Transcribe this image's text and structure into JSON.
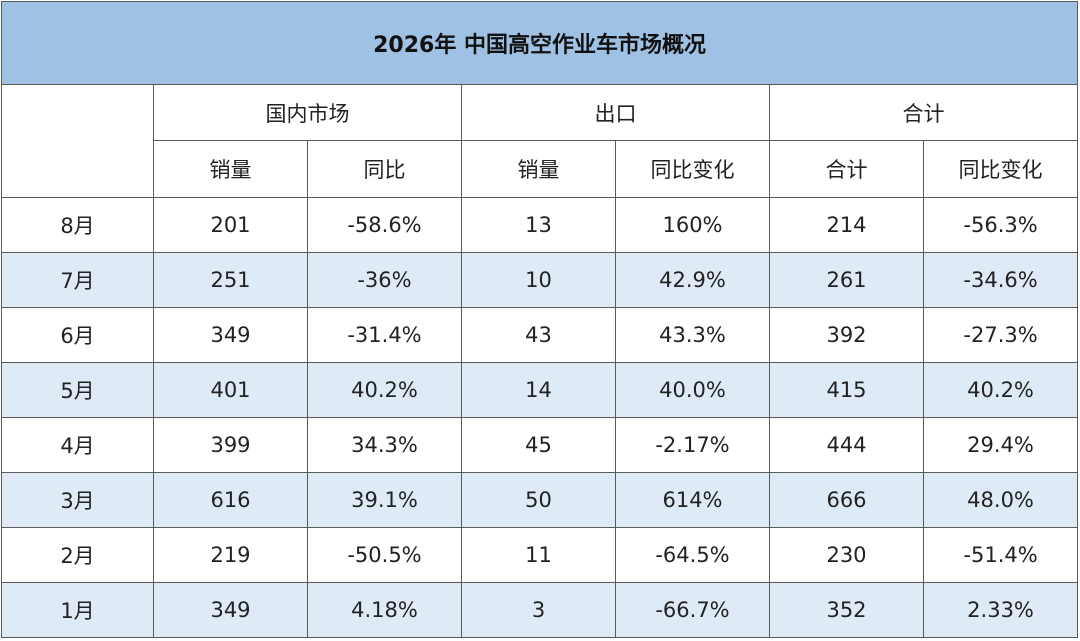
{
  "title": "2026年 中国高空作业车市场概况",
  "groups": {
    "domestic": "国内市场",
    "export": "出口",
    "total": "合计"
  },
  "subheaders": [
    "销量",
    "同比",
    "销量",
    "同比变化",
    "合计",
    "同比变化"
  ],
  "rows": [
    [
      "8月",
      "201",
      "-58.6%",
      "13",
      "160%",
      "214",
      "-56.3%"
    ],
    [
      "7月",
      "251",
      "-36%",
      "10",
      "42.9%",
      "261",
      "-34.6%"
    ],
    [
      "6月",
      "349",
      "-31.4%",
      "43",
      "43.3%",
      "392",
      "-27.3%"
    ],
    [
      "5月",
      "401",
      "40.2%",
      "14",
      "40.0%",
      "415",
      "40.2%"
    ],
    [
      "4月",
      "399",
      "34.3%",
      "45",
      "-2.17%",
      "444",
      "29.4%"
    ],
    [
      "3月",
      "616",
      "39.1%",
      "50",
      "614%",
      "666",
      "48.0%"
    ],
    [
      "2月",
      "219",
      "-50.5%",
      "11",
      "-64.5%",
      "230",
      "-51.4%"
    ],
    [
      "1月",
      "349",
      "4.18%",
      "3",
      "-66.7%",
      "352",
      "2.33%"
    ]
  ]
}
